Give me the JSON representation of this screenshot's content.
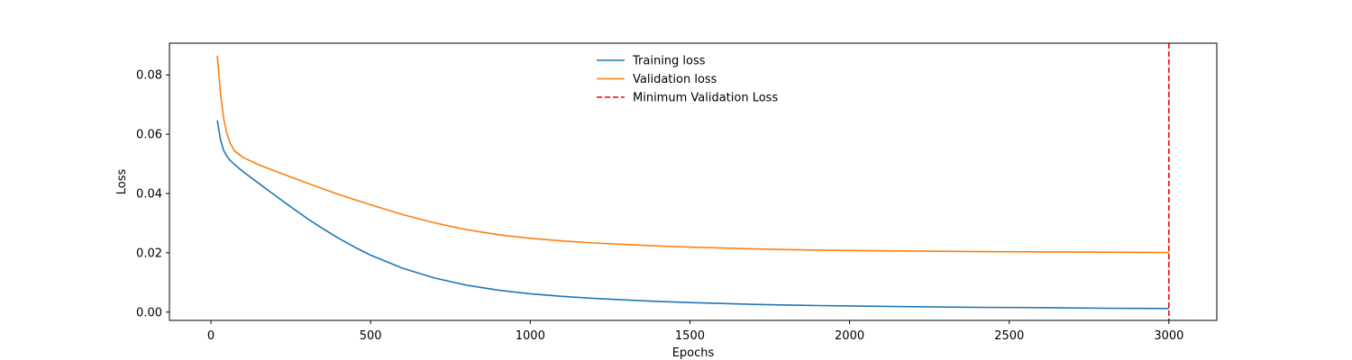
{
  "chart_data": {
    "type": "line",
    "title": "",
    "xlabel": "Epochs",
    "ylabel": "Loss",
    "xlim": [
      -130,
      3150
    ],
    "ylim": [
      -0.0028,
      0.0907
    ],
    "x_ticks": [
      0,
      500,
      1000,
      1500,
      2000,
      2500,
      3000
    ],
    "x_tick_labels": [
      "0",
      "500",
      "1000",
      "1500",
      "2000",
      "2500",
      "3000"
    ],
    "y_ticks": [
      0.0,
      0.02,
      0.04,
      0.06,
      0.08
    ],
    "y_tick_labels": [
      "0.00",
      "0.02",
      "0.04",
      "0.06",
      "0.08"
    ],
    "grid": false,
    "legend_position": "top-center",
    "series": [
      {
        "name": "Training loss",
        "color": "#1f77b4",
        "style": "solid",
        "x": [
          20,
          30,
          40,
          50,
          60,
          75,
          100,
          150,
          200,
          250,
          300,
          350,
          400,
          450,
          500,
          600,
          700,
          800,
          900,
          1000,
          1100,
          1200,
          1300,
          1400,
          1500,
          1600,
          1700,
          1800,
          1900,
          2000,
          2200,
          2400,
          2600,
          2800,
          3000
        ],
        "y": [
          0.0647,
          0.058,
          0.0545,
          0.0525,
          0.0512,
          0.0497,
          0.0474,
          0.0434,
          0.0394,
          0.0355,
          0.0317,
          0.0282,
          0.0249,
          0.0219,
          0.0192,
          0.0148,
          0.0115,
          0.0091,
          0.0074,
          0.0062,
          0.0053,
          0.0046,
          0.0041,
          0.0036,
          0.0032,
          0.0029,
          0.0026,
          0.0024,
          0.0022,
          0.0021,
          0.0018,
          0.0016,
          0.0015,
          0.0013,
          0.0012
        ]
      },
      {
        "name": "Validation loss",
        "color": "#ff7f0e",
        "style": "solid",
        "x": [
          20,
          30,
          40,
          50,
          60,
          75,
          100,
          150,
          200,
          250,
          300,
          350,
          400,
          450,
          500,
          600,
          700,
          800,
          900,
          1000,
          1100,
          1200,
          1300,
          1400,
          1500,
          1600,
          1700,
          1800,
          1900,
          2000,
          2200,
          2400,
          2600,
          2800,
          3000
        ],
        "y": [
          0.0865,
          0.0735,
          0.0652,
          0.0602,
          0.057,
          0.0542,
          0.0522,
          0.0497,
          0.0476,
          0.0456,
          0.0436,
          0.0416,
          0.0397,
          0.0379,
          0.0362,
          0.0329,
          0.0301,
          0.0278,
          0.0261,
          0.0249,
          0.024,
          0.0233,
          0.0228,
          0.0223,
          0.0219,
          0.0216,
          0.0213,
          0.0211,
          0.0209,
          0.0208,
          0.0206,
          0.0204,
          0.0203,
          0.0202,
          0.0201
        ]
      }
    ],
    "vlines": [
      {
        "name": "Minimum Validation Loss",
        "x": 3000,
        "color": "#ff0000",
        "style": "dashed"
      }
    ]
  }
}
